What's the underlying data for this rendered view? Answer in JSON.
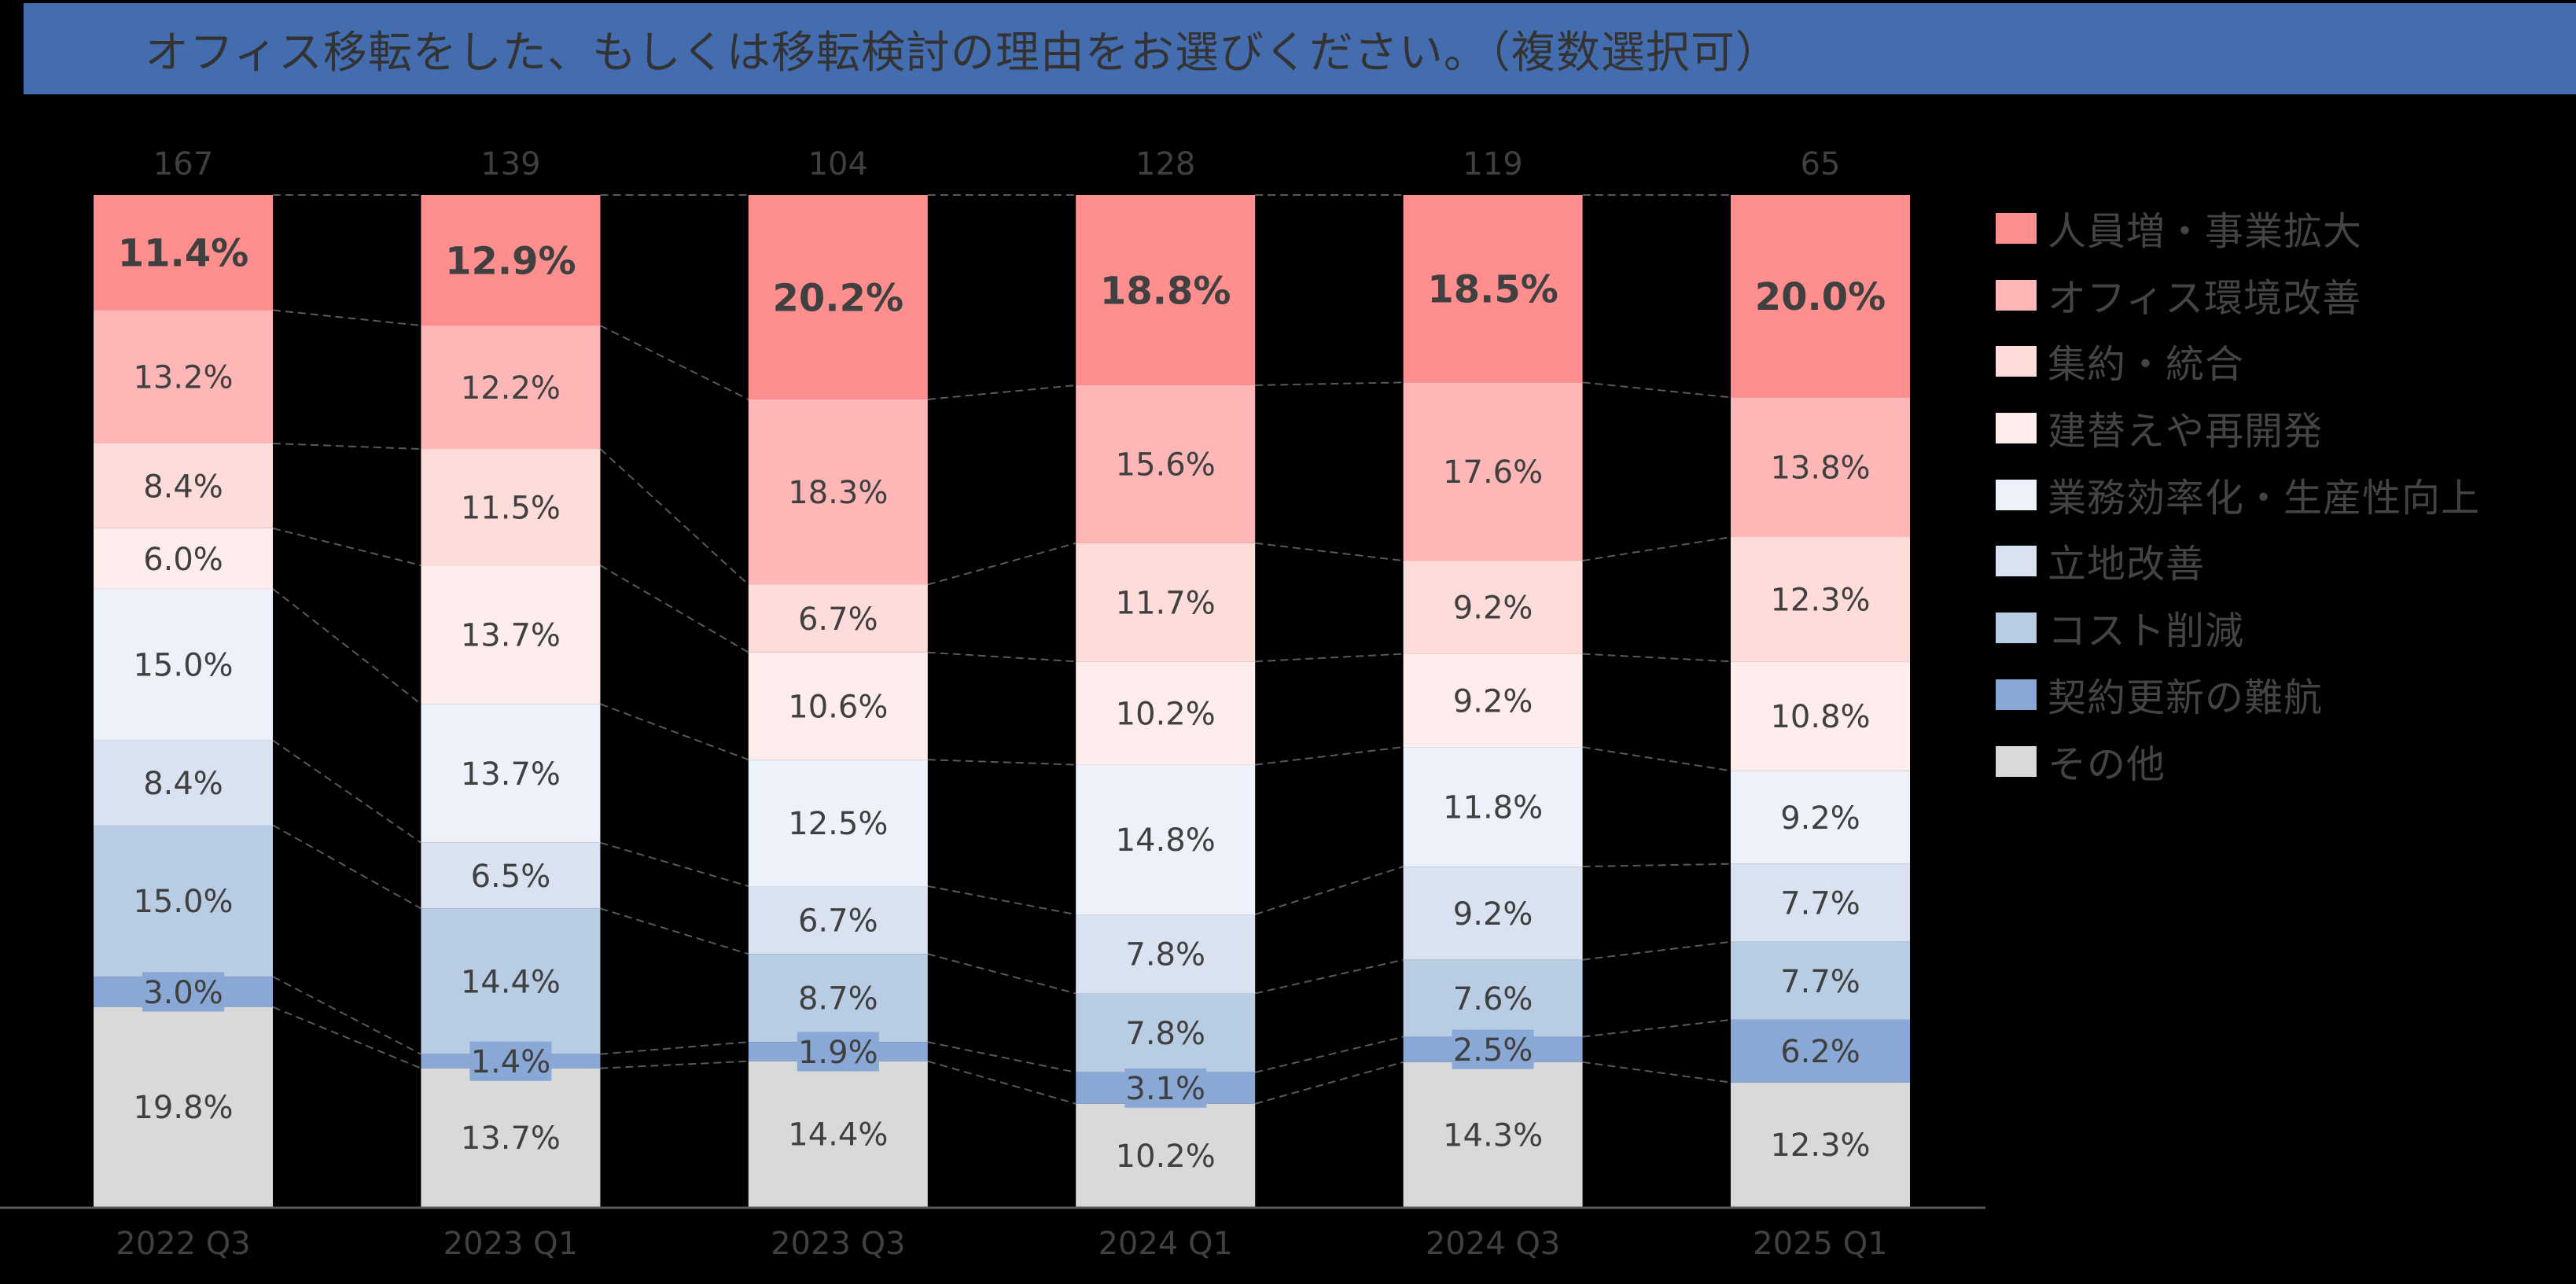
{
  "title": "オフィス移転をした、もしくは移転検討の理由をお選びください。（複数選択可）",
  "colors": {
    "title_bar": "#446db0",
    "background": "#000000",
    "text": "#404040",
    "axis": "#595959",
    "connector": "#595959"
  },
  "legend": {
    "items": [
      {
        "label": "人員増・事業拡大",
        "color": "#ff8f8f"
      },
      {
        "label": "オフィス環境改善",
        "color": "#ffb6b6"
      },
      {
        "label": "集約・統合",
        "color": "#fddcda"
      },
      {
        "label": "建替えや再開発",
        "color": "#ffeded"
      },
      {
        "label": "業務効率化・生産性向上",
        "color": "#edf2fa"
      },
      {
        "label": "立地改善",
        "color": "#d9e2f1"
      },
      {
        "label": "コスト削減",
        "color": "#b8cce4"
      },
      {
        "label": "契約更新の難航",
        "color": "#8aa8d6"
      },
      {
        "label": "その他",
        "color": "#d8d9db"
      }
    ]
  },
  "chart_data": {
    "type": "bar",
    "stacked": true,
    "normalized_100pct": true,
    "title": "オフィス移転をした、もしくは移転検討の理由をお選びください。（複数選択可）",
    "xlabel": "",
    "ylabel": "",
    "ylim": [
      0,
      100
    ],
    "grid": false,
    "legend_position": "right",
    "categories": [
      "2022 Q3",
      "2023 Q1",
      "2023 Q3",
      "2024 Q1",
      "2024 Q3",
      "2025 Q1"
    ],
    "totals": [
      167,
      139,
      104,
      128,
      119,
      65
    ],
    "series": [
      {
        "name": "人員増・事業拡大",
        "values": [
          11.4,
          12.9,
          20.2,
          18.8,
          18.5,
          20.0
        ],
        "bold": true
      },
      {
        "name": "オフィス環境改善",
        "values": [
          13.2,
          12.2,
          18.3,
          15.6,
          17.6,
          13.8
        ]
      },
      {
        "name": "集約・統合",
        "values": [
          8.4,
          11.5,
          6.7,
          11.7,
          9.2,
          12.3
        ]
      },
      {
        "name": "建替えや再開発",
        "values": [
          6.0,
          13.7,
          10.6,
          10.2,
          9.2,
          10.8
        ]
      },
      {
        "name": "業務効率化・生産性向上",
        "values": [
          15.0,
          13.7,
          12.5,
          14.8,
          11.8,
          9.2
        ]
      },
      {
        "name": "立地改善",
        "values": [
          8.4,
          6.5,
          6.7,
          7.8,
          9.2,
          7.7
        ]
      },
      {
        "name": "コスト削減",
        "values": [
          15.0,
          14.4,
          8.7,
          7.8,
          7.6,
          7.7
        ]
      },
      {
        "name": "契約更新の難航",
        "values": [
          3.0,
          1.4,
          1.9,
          3.1,
          2.5,
          6.2
        ]
      },
      {
        "name": "その他",
        "values": [
          19.8,
          13.7,
          14.4,
          10.2,
          14.3,
          12.3
        ]
      }
    ],
    "annotations": "Dashed connector lines link segment boundaries between adjacent bars"
  }
}
